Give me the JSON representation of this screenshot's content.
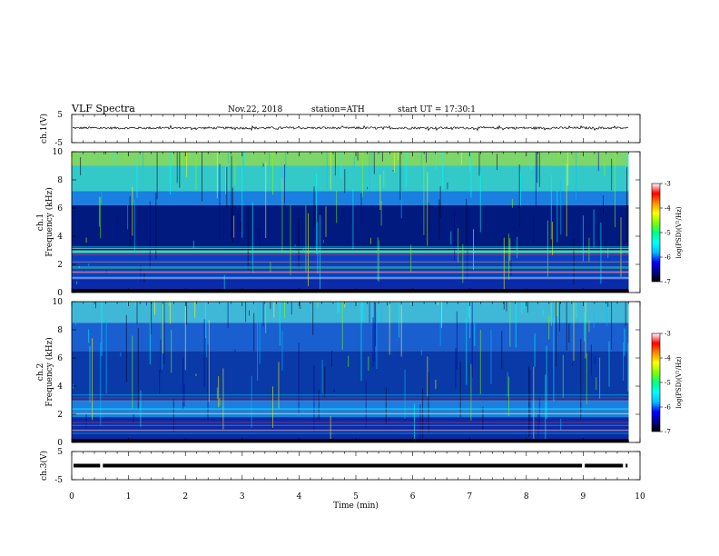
{
  "header": {
    "title": "VLF Spectra",
    "date": "Nov.22, 2018",
    "station": "station=ATH",
    "start": "start UT = 17:30:1"
  },
  "chart_data": [
    {
      "type": "line",
      "ylabel": "ch.1(V)",
      "ylim": [
        -5,
        5
      ],
      "yticks": [
        "5",
        "-5"
      ],
      "x_range_min": [
        0,
        9.8
      ],
      "baseline_v": 0.2,
      "noise_amplitude_v": 0.8,
      "color": "#000000"
    },
    {
      "type": "heatmap",
      "ylabel": "ch.1\nFrequency (kHz)",
      "ylim": [
        0,
        10
      ],
      "yticks": [
        "0",
        "2",
        "4",
        "6",
        "8",
        "10"
      ],
      "x_range_min": [
        0,
        9.8
      ],
      "colorbar": {
        "label": "log(PSD)(V²/Hz)",
        "range": [
          -7,
          -3
        ],
        "ticks": [
          "-3",
          "-4",
          "-5",
          "-6",
          "-7"
        ],
        "colors": [
          "#000000",
          "#00008b",
          "#0000ff",
          "#00bfff",
          "#00ffff",
          "#00ff7f",
          "#7fff00",
          "#ffff00",
          "#ff8c00",
          "#ff0000",
          "#ffffff"
        ]
      },
      "bands_khz": [
        {
          "from": 9.0,
          "to": 10.0,
          "color": "#7cd66a"
        },
        {
          "from": 7.2,
          "to": 9.0,
          "color": "#34c9c9"
        },
        {
          "from": 6.2,
          "to": 7.2,
          "color": "#1a7fe0"
        },
        {
          "from": 3.0,
          "to": 6.2,
          "color": "#001a80"
        },
        {
          "from": 2.8,
          "to": 3.0,
          "color": "#2fd0c8"
        },
        {
          "from": 1.0,
          "to": 2.8,
          "color": "#0a3fc0"
        },
        {
          "from": 0.0,
          "to": 1.0,
          "color": "#0b2aa8"
        }
      ]
    },
    {
      "type": "heatmap",
      "ylabel": "ch.2\nFrequency (kHz)",
      "ylim": [
        0,
        10
      ],
      "yticks": [
        "0",
        "2",
        "4",
        "6",
        "8",
        "10"
      ],
      "x_range_min": [
        0,
        9.8
      ],
      "colorbar": {
        "label": "log(PSD)(V²/Hz)",
        "range": [
          -7,
          -3
        ],
        "ticks": [
          "-3",
          "-4",
          "-5",
          "-6",
          "-7"
        ],
        "colors": [
          "#000000",
          "#00008b",
          "#0000ff",
          "#00bfff",
          "#00ffff",
          "#00ff7f",
          "#7fff00",
          "#ffff00",
          "#ff8c00",
          "#ff0000",
          "#ffffff"
        ]
      },
      "bands_khz": [
        {
          "from": 8.5,
          "to": 10.0,
          "color": "#3fb8d8"
        },
        {
          "from": 6.5,
          "to": 8.5,
          "color": "#1a5fd0"
        },
        {
          "from": 3.0,
          "to": 6.5,
          "color": "#0a3aa8"
        },
        {
          "from": 1.8,
          "to": 3.0,
          "color": "#1a7fe0"
        },
        {
          "from": 0.0,
          "to": 1.8,
          "color": "#0b2aa8"
        }
      ]
    },
    {
      "type": "line",
      "ylabel": "ch.3(V)",
      "ylim": [
        -5,
        5
      ],
      "yticks": [
        "5",
        "-5"
      ],
      "x_range_min": [
        0,
        9.8
      ],
      "baseline_v": 0.0,
      "color": "#000000"
    }
  ],
  "xaxis": {
    "label": "Time (min)",
    "ticks": [
      "0",
      "1",
      "2",
      "3",
      "4",
      "5",
      "6",
      "7",
      "8",
      "9",
      "10"
    ],
    "xlim": [
      0,
      10
    ]
  }
}
